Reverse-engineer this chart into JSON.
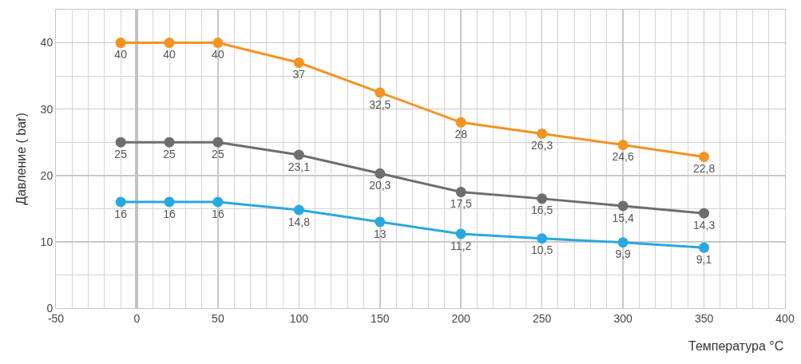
{
  "chart_data": {
    "type": "line",
    "xlabel": "Температура °C",
    "ylabel": "Давление ( bar)",
    "x": [
      -10,
      20,
      50,
      100,
      150,
      200,
      250,
      300,
      350
    ],
    "xlim": [
      -50,
      400
    ],
    "xticks": [
      -50,
      0,
      50,
      100,
      150,
      200,
      250,
      300,
      350,
      400
    ],
    "ylim": [
      0,
      45
    ],
    "yticks": [
      0,
      10,
      20,
      30,
      40
    ],
    "grid": true,
    "marker": "circle",
    "line_style": "solid",
    "series": [
      {
        "color": "#f39323",
        "values": [
          40,
          40,
          40,
          37,
          32.5,
          28,
          26.3,
          24.6,
          22.8
        ],
        "value_labels": [
          "40",
          "40",
          "40",
          "37",
          "32,5",
          "28",
          "26,3",
          "24,6",
          "22,8"
        ]
      },
      {
        "color": "#6d6e71",
        "values": [
          25,
          25,
          25,
          23.1,
          20.3,
          17.5,
          16.5,
          15.4,
          14.3
        ],
        "value_labels": [
          "25",
          "25",
          "25",
          "23,1",
          "20,3",
          "17,5",
          "16,5",
          "15,4",
          "14,3"
        ]
      },
      {
        "color": "#29a8e0",
        "values": [
          16,
          16,
          16,
          14.8,
          13,
          11.2,
          10.5,
          9.9,
          9.1
        ],
        "value_labels": [
          "16",
          "16",
          "16",
          "14,8",
          "13",
          "11,2",
          "10,5",
          "9,9",
          "9,1"
        ]
      }
    ]
  }
}
